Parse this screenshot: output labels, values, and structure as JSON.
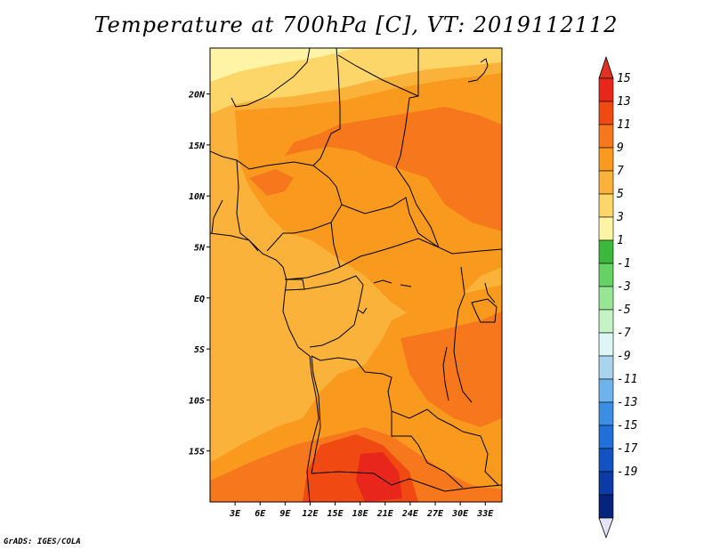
{
  "title": "Temperature at 700hPa [C], VT: 2019112112",
  "footer": "GrADS: IGES/COLA",
  "map": {
    "lat_ticks": [
      "20N",
      "15N",
      "10N",
      "5N",
      "EQ",
      "5S",
      "10S",
      "15S"
    ],
    "lat_values": [
      20,
      15,
      10,
      5,
      0,
      -5,
      -10,
      -15
    ],
    "lon_ticks": [
      "3E",
      "6E",
      "9E",
      "12E",
      "15E",
      "18E",
      "21E",
      "24E",
      "27E",
      "30E",
      "33E"
    ],
    "lon_values": [
      3,
      6,
      9,
      12,
      15,
      18,
      21,
      24,
      27,
      30,
      33
    ],
    "lat_range": [
      -20,
      24.5
    ],
    "lon_range": [
      0,
      35
    ]
  },
  "colorbar": {
    "labels": [
      "15",
      "13",
      "11",
      "9",
      "7",
      "5",
      "3",
      "1",
      "-1",
      "-3",
      "-5",
      "-7",
      "-9",
      "-11",
      "-13",
      "-15",
      "-17",
      "-19"
    ],
    "colors": [
      "#e8261c",
      "#f04a12",
      "#f7771c",
      "#f99a1e",
      "#fbb23a",
      "#fdd66a",
      "#fff4a6",
      "#3cb83c",
      "#64d264",
      "#96e696",
      "#c4f4c4",
      "#dcf6f6",
      "#aad4ee",
      "#6eb2ee",
      "#3c8ee4",
      "#236fd9",
      "#1451c2",
      "#0c3aa6",
      "#06247c"
    ],
    "over_color": "#e13024",
    "under_color": "#e4e4f8"
  }
}
